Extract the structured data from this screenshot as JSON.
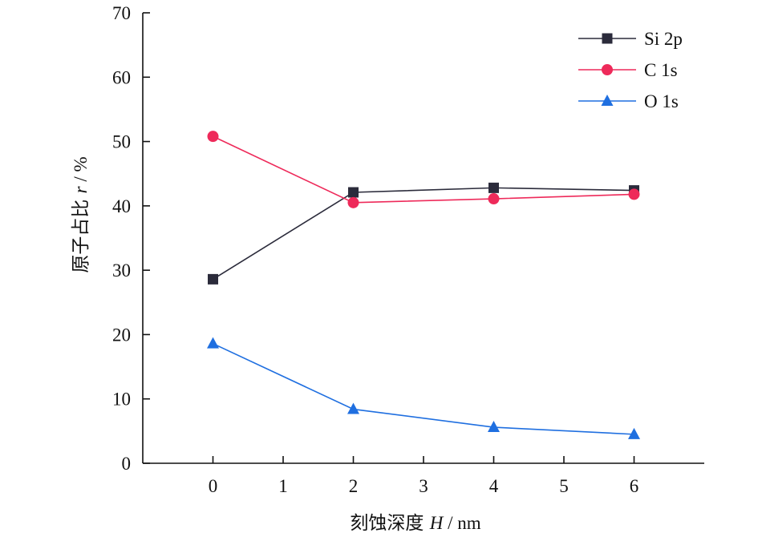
{
  "chart_data": {
    "type": "line",
    "x": [
      0,
      2,
      4,
      6
    ],
    "series": [
      {
        "name": "Si 2p",
        "values": [
          28.6,
          42.1,
          42.8,
          42.4
        ],
        "color": "#2b2b3b",
        "marker": "square"
      },
      {
        "name": "C 1s",
        "values": [
          50.8,
          40.5,
          41.1,
          41.8
        ],
        "color": "#ee2a5a",
        "marker": "circle"
      },
      {
        "name": "O 1s",
        "values": [
          18.6,
          8.4,
          5.6,
          4.5
        ],
        "color": "#1f6fe0",
        "marker": "triangle"
      }
    ],
    "xlim": [
      -1,
      7
    ],
    "ylim": [
      0,
      70
    ],
    "xticks": [
      0,
      1,
      2,
      3,
      4,
      5,
      6
    ],
    "yticks": [
      0,
      10,
      20,
      30,
      40,
      50,
      60,
      70
    ],
    "xlabel": {
      "prefix": "刻蚀深度 ",
      "var": "H",
      "unit": " / nm"
    },
    "ylabel": {
      "prefix": "原子占比 ",
      "var": "r",
      "unit": " / %"
    },
    "legend_position": "top-right",
    "grid": false
  }
}
